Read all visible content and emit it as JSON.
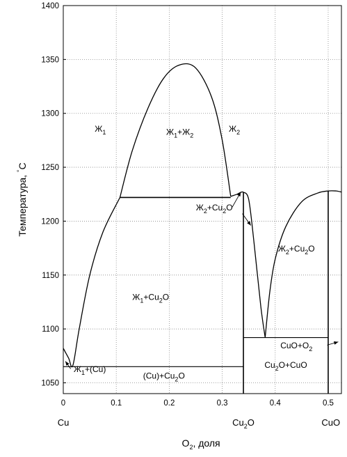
{
  "chart_data": {
    "type": "phase-diagram",
    "xlabel": "O2, доля",
    "ylabel": "Температура, °С",
    "xlim": [
      0,
      0.525
    ],
    "ylim": [
      1040,
      1400
    ],
    "xticks": [
      "0",
      "0.1",
      "0.2",
      "0.3",
      "0.4",
      "0.5"
    ],
    "yticks": [
      "1050",
      "1100",
      "1150",
      "1200",
      "1250",
      "1300",
      "1350",
      "1400"
    ],
    "grid": true,
    "components": [
      {
        "label": "Cu",
        "x": 0
      },
      {
        "label": "Cu2O",
        "x": 0.34
      },
      {
        "label": "CuO",
        "x": 0.505
      }
    ],
    "curves": [
      {
        "name": "liquidus-cu-side",
        "points": [
          [
            0,
            1082
          ],
          [
            0.01,
            1073
          ],
          [
            0.018,
            1066
          ],
          [
            0.03,
            1100
          ],
          [
            0.05,
            1150
          ],
          [
            0.075,
            1190
          ],
          [
            0.107,
            1222
          ]
        ]
      },
      {
        "name": "miscibility-gap",
        "points": [
          [
            0.107,
            1222
          ],
          [
            0.13,
            1265
          ],
          [
            0.16,
            1305
          ],
          [
            0.19,
            1333
          ],
          [
            0.22,
            1345
          ],
          [
            0.25,
            1342
          ],
          [
            0.28,
            1315
          ],
          [
            0.3,
            1275
          ],
          [
            0.316,
            1223
          ]
        ]
      },
      {
        "name": "liquidus-cu2o-left",
        "points": [
          [
            0.316,
            1223
          ],
          [
            0.328,
            1225
          ],
          [
            0.336,
            1227
          ],
          [
            0.34,
            1227
          ]
        ]
      },
      {
        "name": "liquidus-cu2o-right",
        "points": [
          [
            0.34,
            1227
          ],
          [
            0.35,
            1220
          ],
          [
            0.36,
            1180
          ],
          [
            0.373,
            1120
          ],
          [
            0.381,
            1092
          ]
        ]
      },
      {
        "name": "liquidus-cuo-left",
        "points": [
          [
            0.381,
            1092
          ],
          [
            0.39,
            1135
          ],
          [
            0.4,
            1165
          ],
          [
            0.42,
            1195
          ],
          [
            0.45,
            1218
          ],
          [
            0.48,
            1226
          ],
          [
            0.5,
            1228
          ],
          [
            0.515,
            1228
          ],
          [
            0.525,
            1227
          ]
        ]
      }
    ],
    "lines": [
      {
        "name": "monotectic-1222",
        "points": [
          [
            0.107,
            1222
          ],
          [
            0.316,
            1222
          ]
        ]
      },
      {
        "name": "eutectic-1065",
        "points": [
          [
            0,
            1065
          ],
          [
            0.34,
            1065
          ]
        ]
      },
      {
        "name": "eutectic-1092",
        "points": [
          [
            0.34,
            1092
          ],
          [
            0.5,
            1092
          ]
        ]
      },
      {
        "name": "cu2o-line",
        "points": [
          [
            0.34,
            1040
          ],
          [
            0.34,
            1227
          ]
        ]
      },
      {
        "name": "cuo-line",
        "points": [
          [
            0.5,
            1040
          ],
          [
            0.5,
            1228
          ]
        ]
      }
    ],
    "regions": [
      {
        "label": "Ж1",
        "x": 0.07,
        "y": 1283
      },
      {
        "label": "Ж1+Ж2",
        "x": 0.22,
        "y": 1280
      },
      {
        "label": "Ж2",
        "x": 0.323,
        "y": 1283
      },
      {
        "label": "Ж2+Cu2O",
        "x": 0.285,
        "y": 1210
      },
      {
        "label": "Ж2+Cu2O",
        "x": 0.44,
        "y": 1172
      },
      {
        "label": "Ж1+Cu2O",
        "x": 0.165,
        "y": 1127
      },
      {
        "label": "CuO+O2",
        "x": 0.44,
        "y": 1082
      },
      {
        "label": "Cu2O+CuO",
        "x": 0.42,
        "y": 1064
      },
      {
        "label": "Ж1+(Cu)",
        "x": 0.05,
        "y": 1060
      },
      {
        "label": "(Cu)+Cu2O",
        "x": 0.19,
        "y": 1054
      }
    ],
    "annotations": [
      {
        "name": "arrow-to-peak",
        "from": [
          0.319,
          1213
        ],
        "to": [
          0.335,
          1227
        ]
      },
      {
        "name": "arrow-to-cu2o-liquidus",
        "from": [
          0.338,
          1207
        ],
        "to": [
          0.354,
          1196
        ]
      },
      {
        "name": "arrow-to-cuo-o2",
        "from": [
          0.498,
          1085
        ],
        "to": [
          0.519,
          1088
        ]
      },
      {
        "name": "arrow-to-cu-eutectic",
        "from": [
          0.014,
          1063
        ],
        "to": [
          0.004,
          1070
        ]
      }
    ]
  }
}
